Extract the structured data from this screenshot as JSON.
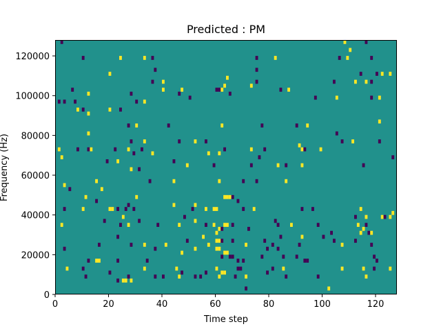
{
  "chart_data": {
    "type": "heatmap",
    "title": "Predicted : PM",
    "xlabel": "Time step",
    "ylabel": "Frequency (Hz)",
    "xlim": [
      0,
      128
    ],
    "ylim": [
      0,
      128000
    ],
    "x_ticks": [
      0,
      20,
      40,
      60,
      80,
      100,
      120
    ],
    "y_ticks": [
      0,
      20000,
      40000,
      60000,
      80000,
      100000,
      120000
    ],
    "x_tick_labels": [
      "0",
      "20",
      "40",
      "60",
      "80",
      "100",
      "120"
    ],
    "y_tick_labels": [
      "0",
      "20000",
      "40000",
      "60000",
      "80000",
      "100000",
      "120000"
    ],
    "grid": false,
    "colormap": "viridis",
    "background_value": 0,
    "value_colors": {
      "-1": "#440154",
      "0": "#21918c",
      "1": "#fde725"
    },
    "bin_width_x": 1,
    "bin_height_y": 2000,
    "cells": [
      [
        2,
        126000,
        -1
      ],
      [
        10,
        118000,
        -1
      ],
      [
        24,
        118000,
        1
      ],
      [
        33,
        118000,
        1
      ],
      [
        36,
        118000,
        -1
      ],
      [
        75,
        118000,
        -1
      ],
      [
        82,
        118000,
        1
      ],
      [
        108,
        126000,
        1
      ],
      [
        109,
        118000,
        1
      ],
      [
        110,
        122000,
        1
      ],
      [
        116,
        126000,
        -1
      ],
      [
        118,
        118000,
        -1
      ],
      [
        106,
        118000,
        -1
      ],
      [
        20,
        110000,
        1
      ],
      [
        37,
        112000,
        -1
      ],
      [
        75,
        112000,
        -1
      ],
      [
        36,
        106000,
        -1
      ],
      [
        40,
        106000,
        1
      ],
      [
        64,
        108000,
        1
      ],
      [
        75,
        106000,
        -1
      ],
      [
        104,
        106000,
        -1
      ],
      [
        112,
        106000,
        1
      ],
      [
        114,
        110000,
        -1
      ],
      [
        116,
        106000,
        1
      ],
      [
        120,
        110000,
        -1
      ],
      [
        122,
        110000,
        1
      ],
      [
        125,
        110000,
        1
      ],
      [
        118,
        106000,
        -1
      ],
      [
        6,
        102000,
        -1
      ],
      [
        12,
        100000,
        1
      ],
      [
        7,
        96000,
        -1
      ],
      [
        8,
        92000,
        1
      ],
      [
        10,
        92000,
        -1
      ],
      [
        12,
        90000,
        1
      ],
      [
        20,
        92000,
        1
      ],
      [
        24,
        92000,
        -1
      ],
      [
        28,
        100000,
        -1
      ],
      [
        30,
        96000,
        -1
      ],
      [
        33,
        96000,
        1
      ],
      [
        40,
        102000,
        1
      ],
      [
        46,
        100000,
        -1
      ],
      [
        47,
        102000,
        1
      ],
      [
        50,
        98000,
        -1
      ],
      [
        60,
        102000,
        -1
      ],
      [
        61,
        102000,
        -1
      ],
      [
        62,
        102000,
        1
      ],
      [
        63,
        104000,
        1
      ],
      [
        65,
        100000,
        -1
      ],
      [
        73,
        104000,
        1
      ],
      [
        84,
        102000,
        -1
      ],
      [
        87,
        102000,
        1
      ],
      [
        97,
        98000,
        -1
      ],
      [
        105,
        98000,
        1
      ],
      [
        118,
        98000,
        -1
      ],
      [
        121,
        98000,
        1
      ],
      [
        1,
        96000,
        -1
      ],
      [
        3,
        96000,
        -1
      ],
      [
        12,
        80000,
        1
      ],
      [
        27,
        84000,
        -1
      ],
      [
        30,
        84000,
        1
      ],
      [
        42,
        84000,
        -1
      ],
      [
        62,
        84000,
        1
      ],
      [
        77,
        84000,
        -1
      ],
      [
        90,
        84000,
        -1
      ],
      [
        94,
        84000,
        1
      ],
      [
        105,
        80000,
        -1
      ],
      [
        107,
        76000,
        -1
      ],
      [
        111,
        76000,
        1
      ],
      [
        121,
        86000,
        1
      ],
      [
        121,
        76000,
        -1
      ],
      [
        12,
        72000,
        -1
      ],
      [
        13,
        72000,
        1
      ],
      [
        28,
        76000,
        -1
      ],
      [
        33,
        76000,
        1
      ],
      [
        27,
        72000,
        1
      ],
      [
        32,
        72000,
        -1
      ],
      [
        29,
        70000,
        -1
      ],
      [
        36,
        70000,
        1
      ],
      [
        46,
        76000,
        -1
      ],
      [
        52,
        76000,
        1
      ],
      [
        56,
        76000,
        -1
      ],
      [
        63,
        72000,
        -1
      ],
      [
        73,
        72000,
        1
      ],
      [
        78,
        72000,
        -1
      ],
      [
        91,
        74000,
        1
      ],
      [
        92,
        72000,
        1
      ],
      [
        93,
        72000,
        -1
      ],
      [
        99,
        72000,
        1
      ],
      [
        1,
        72000,
        1
      ],
      [
        2,
        68000,
        1
      ],
      [
        8,
        72000,
        -1
      ],
      [
        22,
        72000,
        -1
      ],
      [
        19,
        66000,
        -1
      ],
      [
        23,
        66000,
        1
      ],
      [
        28,
        62000,
        1
      ],
      [
        31,
        62000,
        -1
      ],
      [
        44,
        66000,
        -1
      ],
      [
        49,
        64000,
        1
      ],
      [
        57,
        70000,
        1
      ],
      [
        59,
        64000,
        -1
      ],
      [
        61,
        70000,
        1
      ],
      [
        73,
        64000,
        -1
      ],
      [
        76,
        68000,
        -1
      ],
      [
        83,
        64000,
        1
      ],
      [
        86,
        64000,
        -1
      ],
      [
        92,
        64000,
        1
      ],
      [
        115,
        64000,
        -1
      ],
      [
        126,
        68000,
        -1
      ],
      [
        3,
        54000,
        1
      ],
      [
        5,
        52000,
        -1
      ],
      [
        15,
        56000,
        1
      ],
      [
        17,
        52000,
        1
      ],
      [
        35,
        56000,
        -1
      ],
      [
        44,
        56000,
        1
      ],
      [
        61,
        56000,
        1
      ],
      [
        70,
        56000,
        -1
      ],
      [
        75,
        56000,
        -1
      ],
      [
        86,
        56000,
        1
      ],
      [
        3,
        42000,
        -1
      ],
      [
        11,
        48000,
        1
      ],
      [
        15,
        46000,
        -1
      ],
      [
        10,
        42000,
        1
      ],
      [
        20,
        42000,
        1
      ],
      [
        21,
        42000,
        1
      ],
      [
        23,
        42000,
        -1
      ],
      [
        26,
        42000,
        -1
      ],
      [
        25,
        38000,
        1
      ],
      [
        27,
        44000,
        -1
      ],
      [
        29,
        42000,
        -1
      ],
      [
        30,
        48000,
        1
      ],
      [
        44,
        44000,
        1
      ],
      [
        48,
        38000,
        -1
      ],
      [
        51,
        42000,
        -1
      ],
      [
        52,
        44000,
        1
      ],
      [
        56,
        42000,
        1
      ],
      [
        59,
        42000,
        1
      ],
      [
        60,
        42000,
        1
      ],
      [
        63,
        48000,
        1
      ],
      [
        64,
        48000,
        1
      ],
      [
        65,
        48000,
        1
      ],
      [
        66,
        48000,
        -1
      ],
      [
        68,
        46000,
        -1
      ],
      [
        70,
        42000,
        -1
      ],
      [
        74,
        42000,
        1
      ],
      [
        92,
        42000,
        -1
      ],
      [
        96,
        42000,
        -1
      ],
      [
        114,
        42000,
        1
      ],
      [
        116,
        38000,
        1
      ],
      [
        122,
        38000,
        1
      ],
      [
        123,
        38000,
        -1
      ],
      [
        125,
        38000,
        1
      ],
      [
        126,
        40000,
        1
      ],
      [
        112,
        38000,
        -1
      ],
      [
        18,
        36000,
        -1
      ],
      [
        2,
        34000,
        1
      ],
      [
        24,
        34000,
        -1
      ],
      [
        27,
        34000,
        1
      ],
      [
        31,
        36000,
        -1
      ],
      [
        38,
        34000,
        -1
      ],
      [
        46,
        34000,
        1
      ],
      [
        52,
        36000,
        1
      ],
      [
        56,
        34000,
        -1
      ],
      [
        59,
        34000,
        1
      ],
      [
        60,
        30000,
        1
      ],
      [
        61,
        32000,
        1
      ],
      [
        62,
        32000,
        -1
      ],
      [
        63,
        34000,
        1
      ],
      [
        64,
        34000,
        1
      ],
      [
        66,
        34000,
        -1
      ],
      [
        72,
        32000,
        -1
      ],
      [
        82,
        36000,
        -1
      ],
      [
        83,
        34000,
        -1
      ],
      [
        88,
        34000,
        1
      ],
      [
        98,
        34000,
        -1
      ],
      [
        103,
        30000,
        -1
      ],
      [
        113,
        34000,
        1
      ],
      [
        114,
        30000,
        1
      ],
      [
        115,
        32000,
        1
      ],
      [
        117,
        30000,
        -1
      ],
      [
        116,
        34000,
        -1
      ],
      [
        118,
        30000,
        1
      ],
      [
        3,
        22000,
        -1
      ],
      [
        16,
        24000,
        -1
      ],
      [
        23,
        28000,
        -1
      ],
      [
        28,
        24000,
        -1
      ],
      [
        33,
        24000,
        1
      ],
      [
        41,
        24000,
        1
      ],
      [
        49,
        26000,
        -1
      ],
      [
        55,
        28000,
        1
      ],
      [
        57,
        24000,
        1
      ],
      [
        52,
        22000,
        1
      ],
      [
        60,
        26000,
        1
      ],
      [
        61,
        26000,
        1
      ],
      [
        62,
        26000,
        -1
      ],
      [
        66,
        26000,
        -1
      ],
      [
        71,
        24000,
        1
      ],
      [
        78,
        26000,
        -1
      ],
      [
        81,
        24000,
        -1
      ],
      [
        83,
        22000,
        -1
      ],
      [
        84,
        28000,
        -1
      ],
      [
        91,
        24000,
        -1
      ],
      [
        92,
        28000,
        1
      ],
      [
        100,
        28000,
        -1
      ],
      [
        104,
        26000,
        -1
      ],
      [
        107,
        24000,
        1
      ],
      [
        118,
        24000,
        -1
      ],
      [
        112,
        26000,
        -1
      ],
      [
        12,
        16000,
        -1
      ],
      [
        15,
        16000,
        1
      ],
      [
        16,
        16000,
        1
      ],
      [
        23,
        16000,
        -1
      ],
      [
        34,
        16000,
        -1
      ],
      [
        37,
        22000,
        -1
      ],
      [
        47,
        20000,
        1
      ],
      [
        60,
        22000,
        1
      ],
      [
        61,
        22000,
        1
      ],
      [
        62,
        18000,
        -1
      ],
      [
        63,
        20000,
        1
      ],
      [
        64,
        20000,
        1
      ],
      [
        65,
        18000,
        -1
      ],
      [
        66,
        18000,
        -1
      ],
      [
        68,
        16000,
        -1
      ],
      [
        70,
        16000,
        -1
      ],
      [
        77,
        18000,
        -1
      ],
      [
        79,
        22000,
        -1
      ],
      [
        85,
        18000,
        -1
      ],
      [
        90,
        18000,
        -1
      ],
      [
        93,
        16000,
        -1
      ],
      [
        94,
        16000,
        -1
      ],
      [
        120,
        16000,
        -1
      ],
      [
        119,
        18000,
        -1
      ],
      [
        4,
        12000,
        1
      ],
      [
        10,
        12000,
        -1
      ],
      [
        11,
        8000,
        -1
      ],
      [
        20,
        10000,
        -1
      ],
      [
        23,
        6000,
        -1
      ],
      [
        25,
        6000,
        1
      ],
      [
        26,
        6000,
        1
      ],
      [
        27,
        8000,
        -1
      ],
      [
        28,
        6000,
        1
      ],
      [
        33,
        12000,
        1
      ],
      [
        37,
        8000,
        -1
      ],
      [
        40,
        8000,
        -1
      ],
      [
        45,
        12000,
        1
      ],
      [
        46,
        8000,
        1
      ],
      [
        47,
        10000,
        -1
      ],
      [
        52,
        8000,
        -1
      ],
      [
        54,
        8000,
        -1
      ],
      [
        56,
        10000,
        -1
      ],
      [
        60,
        12000,
        1
      ],
      [
        61,
        8000,
        1
      ],
      [
        62,
        10000,
        1
      ],
      [
        63,
        10000,
        1
      ],
      [
        67,
        8000,
        -1
      ],
      [
        68,
        12000,
        -1
      ],
      [
        69,
        12000,
        -1
      ],
      [
        71,
        8000,
        1
      ],
      [
        79,
        10000,
        -1
      ],
      [
        81,
        12000,
        -1
      ],
      [
        85,
        12000,
        1
      ],
      [
        86,
        8000,
        -1
      ],
      [
        98,
        8000,
        -1
      ],
      [
        107,
        12000,
        1
      ],
      [
        115,
        12000,
        1
      ],
      [
        116,
        8000,
        1
      ],
      [
        119,
        12000,
        -1
      ],
      [
        125,
        12000,
        1
      ],
      [
        71,
        2000,
        -1
      ],
      [
        102,
        2000,
        1
      ]
    ]
  }
}
